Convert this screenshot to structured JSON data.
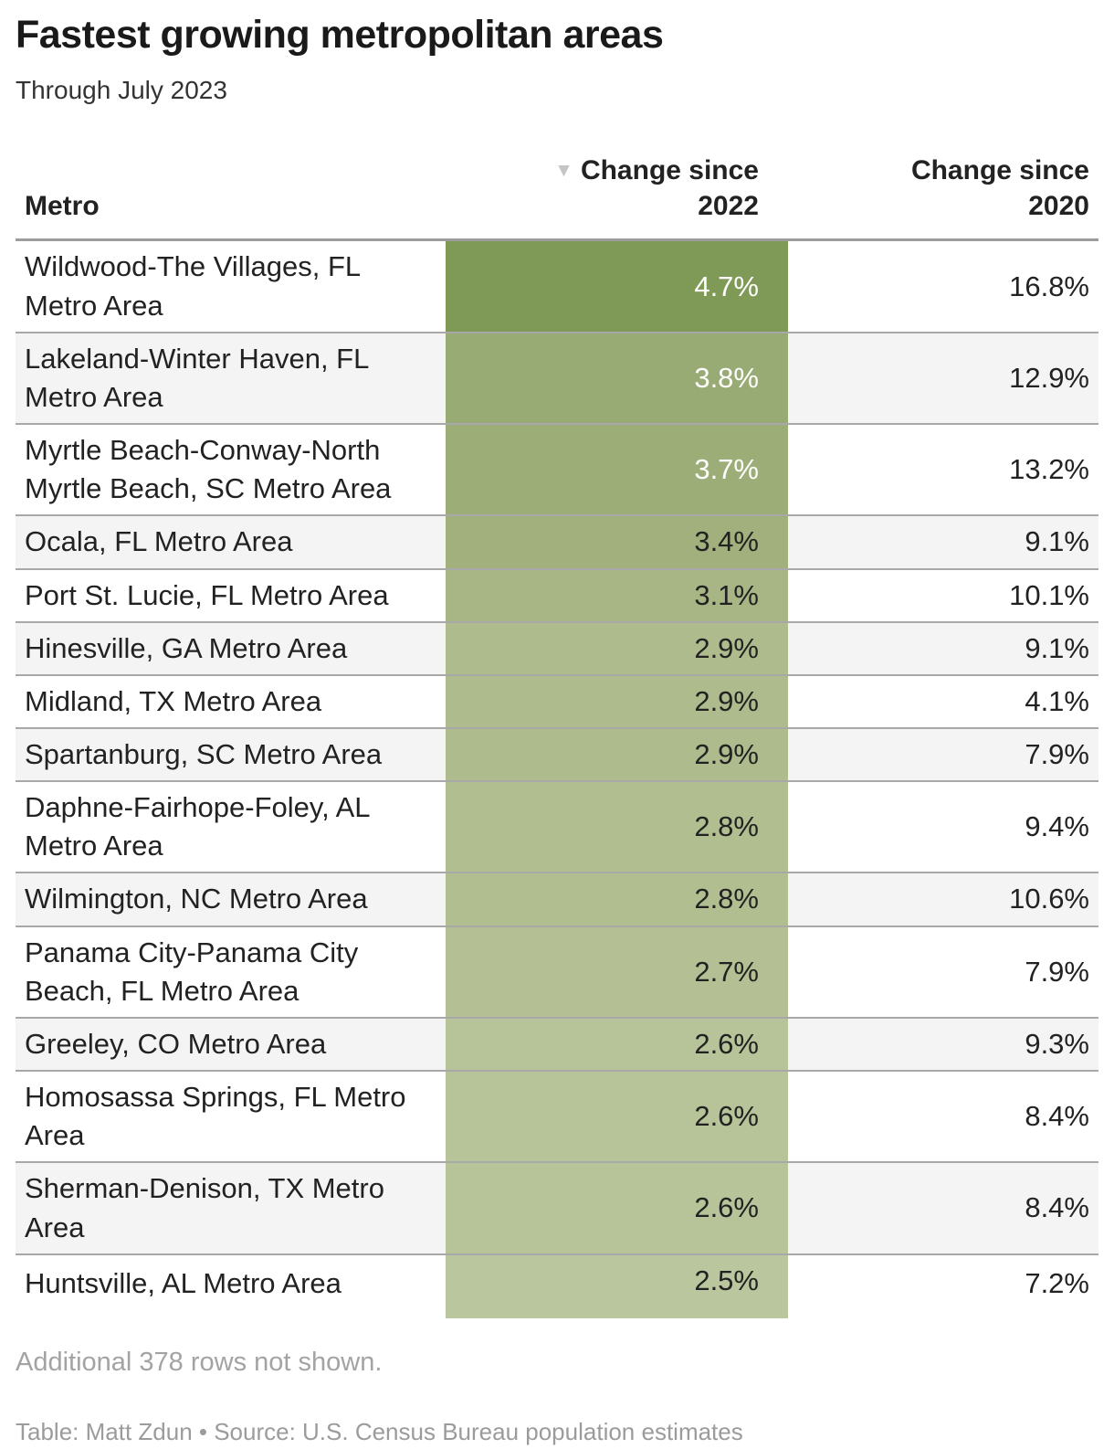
{
  "title": "Fastest growing metropolitan areas",
  "subtitle": "Through July 2023",
  "table": {
    "columns": [
      {
        "label": "Metro"
      },
      {
        "label_line1": "Change since",
        "label_line2": "2022",
        "sorted": "descending"
      },
      {
        "label_line1": "Change since",
        "label_line2": "2020"
      }
    ],
    "sort_icon": "▼",
    "rows": [
      {
        "metro": "Wildwood-The Villages, FL Metro Area",
        "change_2022": "4.7%",
        "change_2020": "16.8%",
        "cell_color": "#7f9a57",
        "value_color": "#ffffff"
      },
      {
        "metro": "Lakeland-Winter Haven, FL Metro Area",
        "change_2022": "3.8%",
        "change_2020": "12.9%",
        "cell_color": "#99ab74",
        "value_color": "#ffffff"
      },
      {
        "metro": "Myrtle Beach-Conway-North Myrtle Beach, SC Metro Area",
        "change_2022": "3.7%",
        "change_2020": "13.2%",
        "cell_color": "#9cad77",
        "value_color": "#ffffff"
      },
      {
        "metro": "Ocala, FL Metro Area",
        "change_2022": "3.4%",
        "change_2020": "9.1%",
        "cell_color": "#a2b07e",
        "value_color": "#222222"
      },
      {
        "metro": "Port St. Lucie, FL Metro Area",
        "change_2022": "3.1%",
        "change_2020": "10.1%",
        "cell_color": "#a8b685",
        "value_color": "#222222"
      },
      {
        "metro": "Hinesville, GA Metro Area",
        "change_2022": "2.9%",
        "change_2020": "9.1%",
        "cell_color": "#aebb8c",
        "value_color": "#222222"
      },
      {
        "metro": "Midland, TX Metro Area",
        "change_2022": "2.9%",
        "change_2020": "4.1%",
        "cell_color": "#aebb8c",
        "value_color": "#222222"
      },
      {
        "metro": "Spartanburg, SC Metro Area",
        "change_2022": "2.9%",
        "change_2020": "7.9%",
        "cell_color": "#aebb8c",
        "value_color": "#222222"
      },
      {
        "metro": "Daphne-Fairhope-Foley, AL Metro Area",
        "change_2022": "2.8%",
        "change_2020": "9.4%",
        "cell_color": "#b1be90",
        "value_color": "#222222"
      },
      {
        "metro": "Wilmington, NC Metro Area",
        "change_2022": "2.8%",
        "change_2020": "10.6%",
        "cell_color": "#b1be90",
        "value_color": "#222222"
      },
      {
        "metro": "Panama City-Panama City Beach, FL Metro Area",
        "change_2022": "2.7%",
        "change_2020": "7.9%",
        "cell_color": "#b4c094",
        "value_color": "#222222"
      },
      {
        "metro": "Greeley, CO Metro Area",
        "change_2022": "2.6%",
        "change_2020": "9.3%",
        "cell_color": "#b7c398",
        "value_color": "#222222"
      },
      {
        "metro": "Homosassa Springs, FL Metro Area",
        "change_2022": "2.6%",
        "change_2020": "8.4%",
        "cell_color": "#b7c398",
        "value_color": "#222222"
      },
      {
        "metro": "Sherman-Denison, TX Metro Area",
        "change_2022": "2.6%",
        "change_2020": "8.4%",
        "cell_color": "#b7c398",
        "value_color": "#222222"
      },
      {
        "metro": "Huntsville, AL Metro Area",
        "change_2022": "2.5%",
        "change_2020": "7.2%",
        "cell_color": "#bac69e",
        "value_color": "#222222"
      }
    ]
  },
  "footer": {
    "note": "Additional 378 rows not shown.",
    "credit": "Table: Matt Zdun • Source: U.S. Census Bureau population estimates"
  },
  "chart_data": {
    "type": "table",
    "title": "Fastest growing metropolitan areas",
    "subtitle": "Through July 2023",
    "columns": [
      "Metro",
      "Change since 2022",
      "Change since 2020"
    ],
    "sorted_by": "Change since 2022 descending",
    "heatmap_column": "Change since 2022",
    "heatmap_color_max": "#7f9a57",
    "heatmap_color_min": "#bac69e",
    "rows": [
      [
        "Wildwood-The Villages, FL Metro Area",
        4.7,
        16.8
      ],
      [
        "Lakeland-Winter Haven, FL Metro Area",
        3.8,
        12.9
      ],
      [
        "Myrtle Beach-Conway-North Myrtle Beach, SC Metro Area",
        3.7,
        13.2
      ],
      [
        "Ocala, FL Metro Area",
        3.4,
        9.1
      ],
      [
        "Port St. Lucie, FL Metro Area",
        3.1,
        10.1
      ],
      [
        "Hinesville, GA Metro Area",
        2.9,
        9.1
      ],
      [
        "Midland, TX Metro Area",
        2.9,
        4.1
      ],
      [
        "Spartanburg, SC Metro Area",
        2.9,
        7.9
      ],
      [
        "Daphne-Fairhope-Foley, AL Metro Area",
        2.8,
        9.4
      ],
      [
        "Wilmington, NC Metro Area",
        2.8,
        10.6
      ],
      [
        "Panama City-Panama City Beach, FL Metro Area",
        2.7,
        7.9
      ],
      [
        "Greeley, CO Metro Area",
        2.6,
        9.3
      ],
      [
        "Homosassa Springs, FL Metro Area",
        2.6,
        8.4
      ],
      [
        "Sherman-Denison, TX Metro Area",
        2.6,
        8.4
      ],
      [
        "Huntsville, AL Metro Area",
        2.5,
        7.2
      ]
    ],
    "note": "Additional 378 rows not shown."
  }
}
